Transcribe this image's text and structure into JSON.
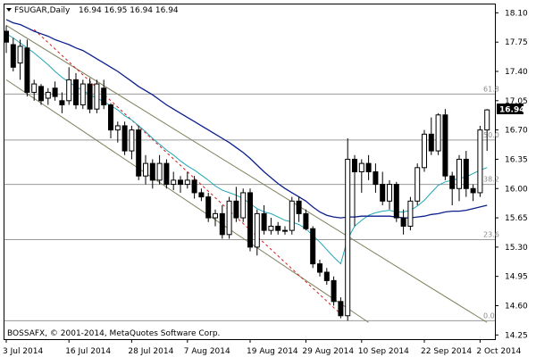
{
  "header": {
    "symbol": "FSUGAR,Daily",
    "ohlc": "16.94 16.95 16.94 16.94"
  },
  "footer": {
    "copyright": "BOSSAFX, © 2001-2014, MetaQuotes Software Corp."
  },
  "colors": {
    "background": "#ffffff",
    "candle_outline": "#000000",
    "bull_body": "#ffffff",
    "bear_body": "#000000",
    "fast_ma": "#20a7b4",
    "slow_ma": "#0b1f8c",
    "channel": "#7f7f5a",
    "dashed_trend": "#d41f1f",
    "fib_levels": "#9a9a9a",
    "price_tag_bg": "#000000",
    "price_tag_fg": "#ffffff"
  },
  "chart_data": {
    "type": "candlestick",
    "symbol": "FSUGAR",
    "timeframe": "Daily",
    "y_axis": {
      "range": [
        14.2,
        18.2
      ],
      "ticks": [
        "18.10",
        "17.75",
        "17.40",
        "17.05",
        "16.70",
        "16.35",
        "16.00",
        "15.65",
        "15.30",
        "14.95",
        "14.60",
        "14.25"
      ],
      "current_price_label": "16.94"
    },
    "x_axis": {
      "ticks": [
        "3 Jul 2014",
        "16 Jul 2014",
        "28 Jul 2014",
        "7 Aug 2014",
        "19 Aug 2014",
        "29 Aug 2014",
        "10 Sep 2014",
        "22 Sep 2014",
        "2 Oct 2014"
      ],
      "tick_index": [
        0,
        9,
        18,
        26,
        35,
        43,
        51,
        60,
        68
      ]
    },
    "last_quote": {
      "open": 16.94,
      "high": 16.95,
      "low": 16.94,
      "close": 16.94
    },
    "fibonacci": {
      "levels": [
        {
          "label": "61.8",
          "price": 17.13
        },
        {
          "label": "50.0",
          "price": 16.58
        },
        {
          "label": "38.2",
          "price": 16.05
        },
        {
          "label": "23.6",
          "price": 15.39
        },
        {
          "label": "0.0",
          "price": 14.42
        }
      ]
    },
    "candles": [
      [
        17.88,
        17.95,
        17.62,
        17.75
      ],
      [
        17.72,
        17.8,
        17.4,
        17.45
      ],
      [
        17.5,
        17.78,
        17.3,
        17.7
      ],
      [
        17.68,
        17.78,
        17.1,
        17.15
      ],
      [
        17.15,
        17.3,
        17.05,
        17.25
      ],
      [
        17.22,
        17.25,
        17.0,
        17.05
      ],
      [
        17.08,
        17.2,
        17.0,
        17.15
      ],
      [
        17.2,
        17.28,
        17.05,
        17.1
      ],
      [
        17.05,
        17.15,
        16.9,
        17.0
      ],
      [
        17.05,
        17.45,
        17.0,
        17.3
      ],
      [
        17.3,
        17.38,
        16.95,
        17.0
      ],
      [
        17.0,
        17.3,
        16.95,
        17.25
      ],
      [
        17.25,
        17.32,
        16.9,
        16.95
      ],
      [
        16.95,
        17.3,
        16.9,
        17.25
      ],
      [
        17.2,
        17.3,
        16.95,
        17.0
      ],
      [
        17.0,
        17.02,
        16.6,
        16.7
      ],
      [
        16.7,
        16.8,
        16.55,
        16.75
      ],
      [
        16.75,
        16.8,
        16.4,
        16.45
      ],
      [
        16.45,
        16.75,
        16.35,
        16.7
      ],
      [
        16.7,
        16.75,
        16.1,
        16.15
      ],
      [
        16.15,
        16.4,
        16.05,
        16.3
      ],
      [
        16.3,
        16.35,
        16.0,
        16.1
      ],
      [
        16.1,
        16.4,
        16.05,
        16.3
      ],
      [
        16.3,
        16.35,
        16.0,
        16.05
      ],
      [
        16.05,
        16.2,
        15.98,
        16.1
      ],
      [
        16.1,
        16.15,
        15.95,
        16.05
      ],
      [
        16.05,
        16.2,
        16.0,
        16.1
      ],
      [
        16.1,
        16.15,
        15.88,
        15.95
      ],
      [
        15.95,
        16.0,
        15.85,
        15.9
      ],
      [
        15.9,
        15.95,
        15.6,
        15.65
      ],
      [
        15.65,
        15.75,
        15.55,
        15.7
      ],
      [
        15.7,
        15.8,
        15.4,
        15.45
      ],
      [
        15.45,
        15.9,
        15.4,
        15.85
      ],
      [
        15.85,
        16.02,
        15.6,
        15.65
      ],
      [
        15.65,
        16.0,
        15.6,
        15.95
      ],
      [
        15.95,
        16.0,
        15.25,
        15.3
      ],
      [
        15.3,
        15.75,
        15.2,
        15.7
      ],
      [
        15.7,
        15.8,
        15.45,
        15.5
      ],
      [
        15.5,
        15.65,
        15.45,
        15.55
      ],
      [
        15.55,
        15.6,
        15.45,
        15.5
      ],
      [
        15.5,
        15.55,
        15.45,
        15.5
      ],
      [
        15.5,
        15.9,
        15.45,
        15.85
      ],
      [
        15.85,
        15.9,
        15.6,
        15.7
      ],
      [
        15.7,
        15.75,
        15.5,
        15.52
      ],
      [
        15.52,
        15.55,
        15.05,
        15.1
      ],
      [
        15.1,
        15.15,
        14.95,
        15.0
      ],
      [
        15.0,
        15.05,
        14.85,
        14.9
      ],
      [
        14.9,
        14.95,
        14.6,
        14.65
      ],
      [
        14.65,
        14.7,
        14.45,
        14.48
      ],
      [
        14.48,
        16.6,
        14.42,
        16.35
      ],
      [
        16.35,
        16.4,
        15.55,
        16.2
      ],
      [
        16.2,
        16.35,
        15.95,
        16.3
      ],
      [
        16.3,
        16.4,
        16.1,
        16.2
      ],
      [
        16.2,
        16.3,
        15.95,
        16.05
      ],
      [
        16.05,
        16.2,
        15.8,
        15.85
      ],
      [
        15.85,
        16.1,
        15.75,
        16.05
      ],
      [
        16.05,
        16.08,
        15.6,
        15.65
      ],
      [
        15.65,
        15.75,
        15.45,
        15.55
      ],
      [
        15.55,
        15.9,
        15.5,
        15.85
      ],
      [
        15.85,
        16.3,
        15.8,
        16.25
      ],
      [
        16.25,
        16.7,
        16.2,
        16.65
      ],
      [
        16.65,
        16.85,
        16.4,
        16.45
      ],
      [
        16.45,
        16.9,
        16.4,
        16.88
      ],
      [
        16.88,
        16.95,
        16.1,
        16.15
      ],
      [
        16.15,
        16.2,
        15.8,
        16.0
      ],
      [
        16.0,
        16.4,
        15.85,
        16.35
      ],
      [
        16.35,
        16.45,
        15.9,
        16.0
      ],
      [
        16.0,
        16.05,
        15.85,
        15.95
      ],
      [
        15.95,
        16.75,
        15.9,
        16.7
      ],
      [
        16.7,
        16.95,
        16.45,
        16.94
      ]
    ],
    "indicators": [
      {
        "type": "moving_average",
        "color": "#20a7b4",
        "values": [
          17.85,
          17.8,
          17.74,
          17.68,
          17.62,
          17.55,
          17.48,
          17.4,
          17.33,
          17.27,
          17.22,
          17.17,
          17.12,
          17.08,
          17.04,
          16.99,
          16.94,
          16.87,
          16.82,
          16.75,
          16.68,
          16.6,
          16.53,
          16.46,
          16.4,
          16.33,
          16.27,
          16.22,
          16.16,
          16.1,
          16.03,
          15.98,
          15.95,
          15.92,
          15.88,
          15.82,
          15.76,
          15.72,
          15.7,
          15.66,
          15.62,
          15.6,
          15.57,
          15.52,
          15.44,
          15.36,
          15.27,
          15.18,
          15.1,
          15.4,
          15.55,
          15.62,
          15.68,
          15.71,
          15.73,
          15.74,
          15.72,
          15.72,
          15.74,
          15.79,
          15.86,
          15.95,
          16.04,
          16.08,
          16.1,
          16.12,
          16.14,
          16.18,
          16.22,
          16.25
        ]
      },
      {
        "type": "moving_average",
        "color": "#0b1f8c",
        "values": [
          18.02,
          17.98,
          17.96,
          17.92,
          17.88,
          17.85,
          17.82,
          17.78,
          17.75,
          17.72,
          17.68,
          17.65,
          17.6,
          17.55,
          17.5,
          17.45,
          17.4,
          17.34,
          17.28,
          17.22,
          17.17,
          17.12,
          17.06,
          17.0,
          16.95,
          16.9,
          16.85,
          16.8,
          16.75,
          16.7,
          16.65,
          16.6,
          16.55,
          16.49,
          16.43,
          16.36,
          16.28,
          16.2,
          16.13,
          16.06,
          16.0,
          15.95,
          15.9,
          15.85,
          15.78,
          15.72,
          15.68,
          15.66,
          15.65,
          15.66,
          15.66,
          15.67,
          15.67,
          15.67,
          15.67,
          15.67,
          15.66,
          15.65,
          15.65,
          15.66,
          15.67,
          15.69,
          15.7,
          15.72,
          15.73,
          15.73,
          15.74,
          15.76,
          15.78,
          15.8
        ]
      }
    ],
    "trendlines": [
      {
        "name": "channel-upper",
        "from": [
          0,
          17.95
        ],
        "to": [
          69,
          14.4
        ],
        "style": "solid"
      },
      {
        "name": "channel-lower",
        "from": [
          0,
          17.3
        ],
        "to": [
          52,
          14.4
        ],
        "style": "solid"
      },
      {
        "name": "dashed-trend",
        "from": [
          4,
          17.9
        ],
        "to": [
          48,
          14.5
        ],
        "style": "dashed"
      }
    ]
  }
}
